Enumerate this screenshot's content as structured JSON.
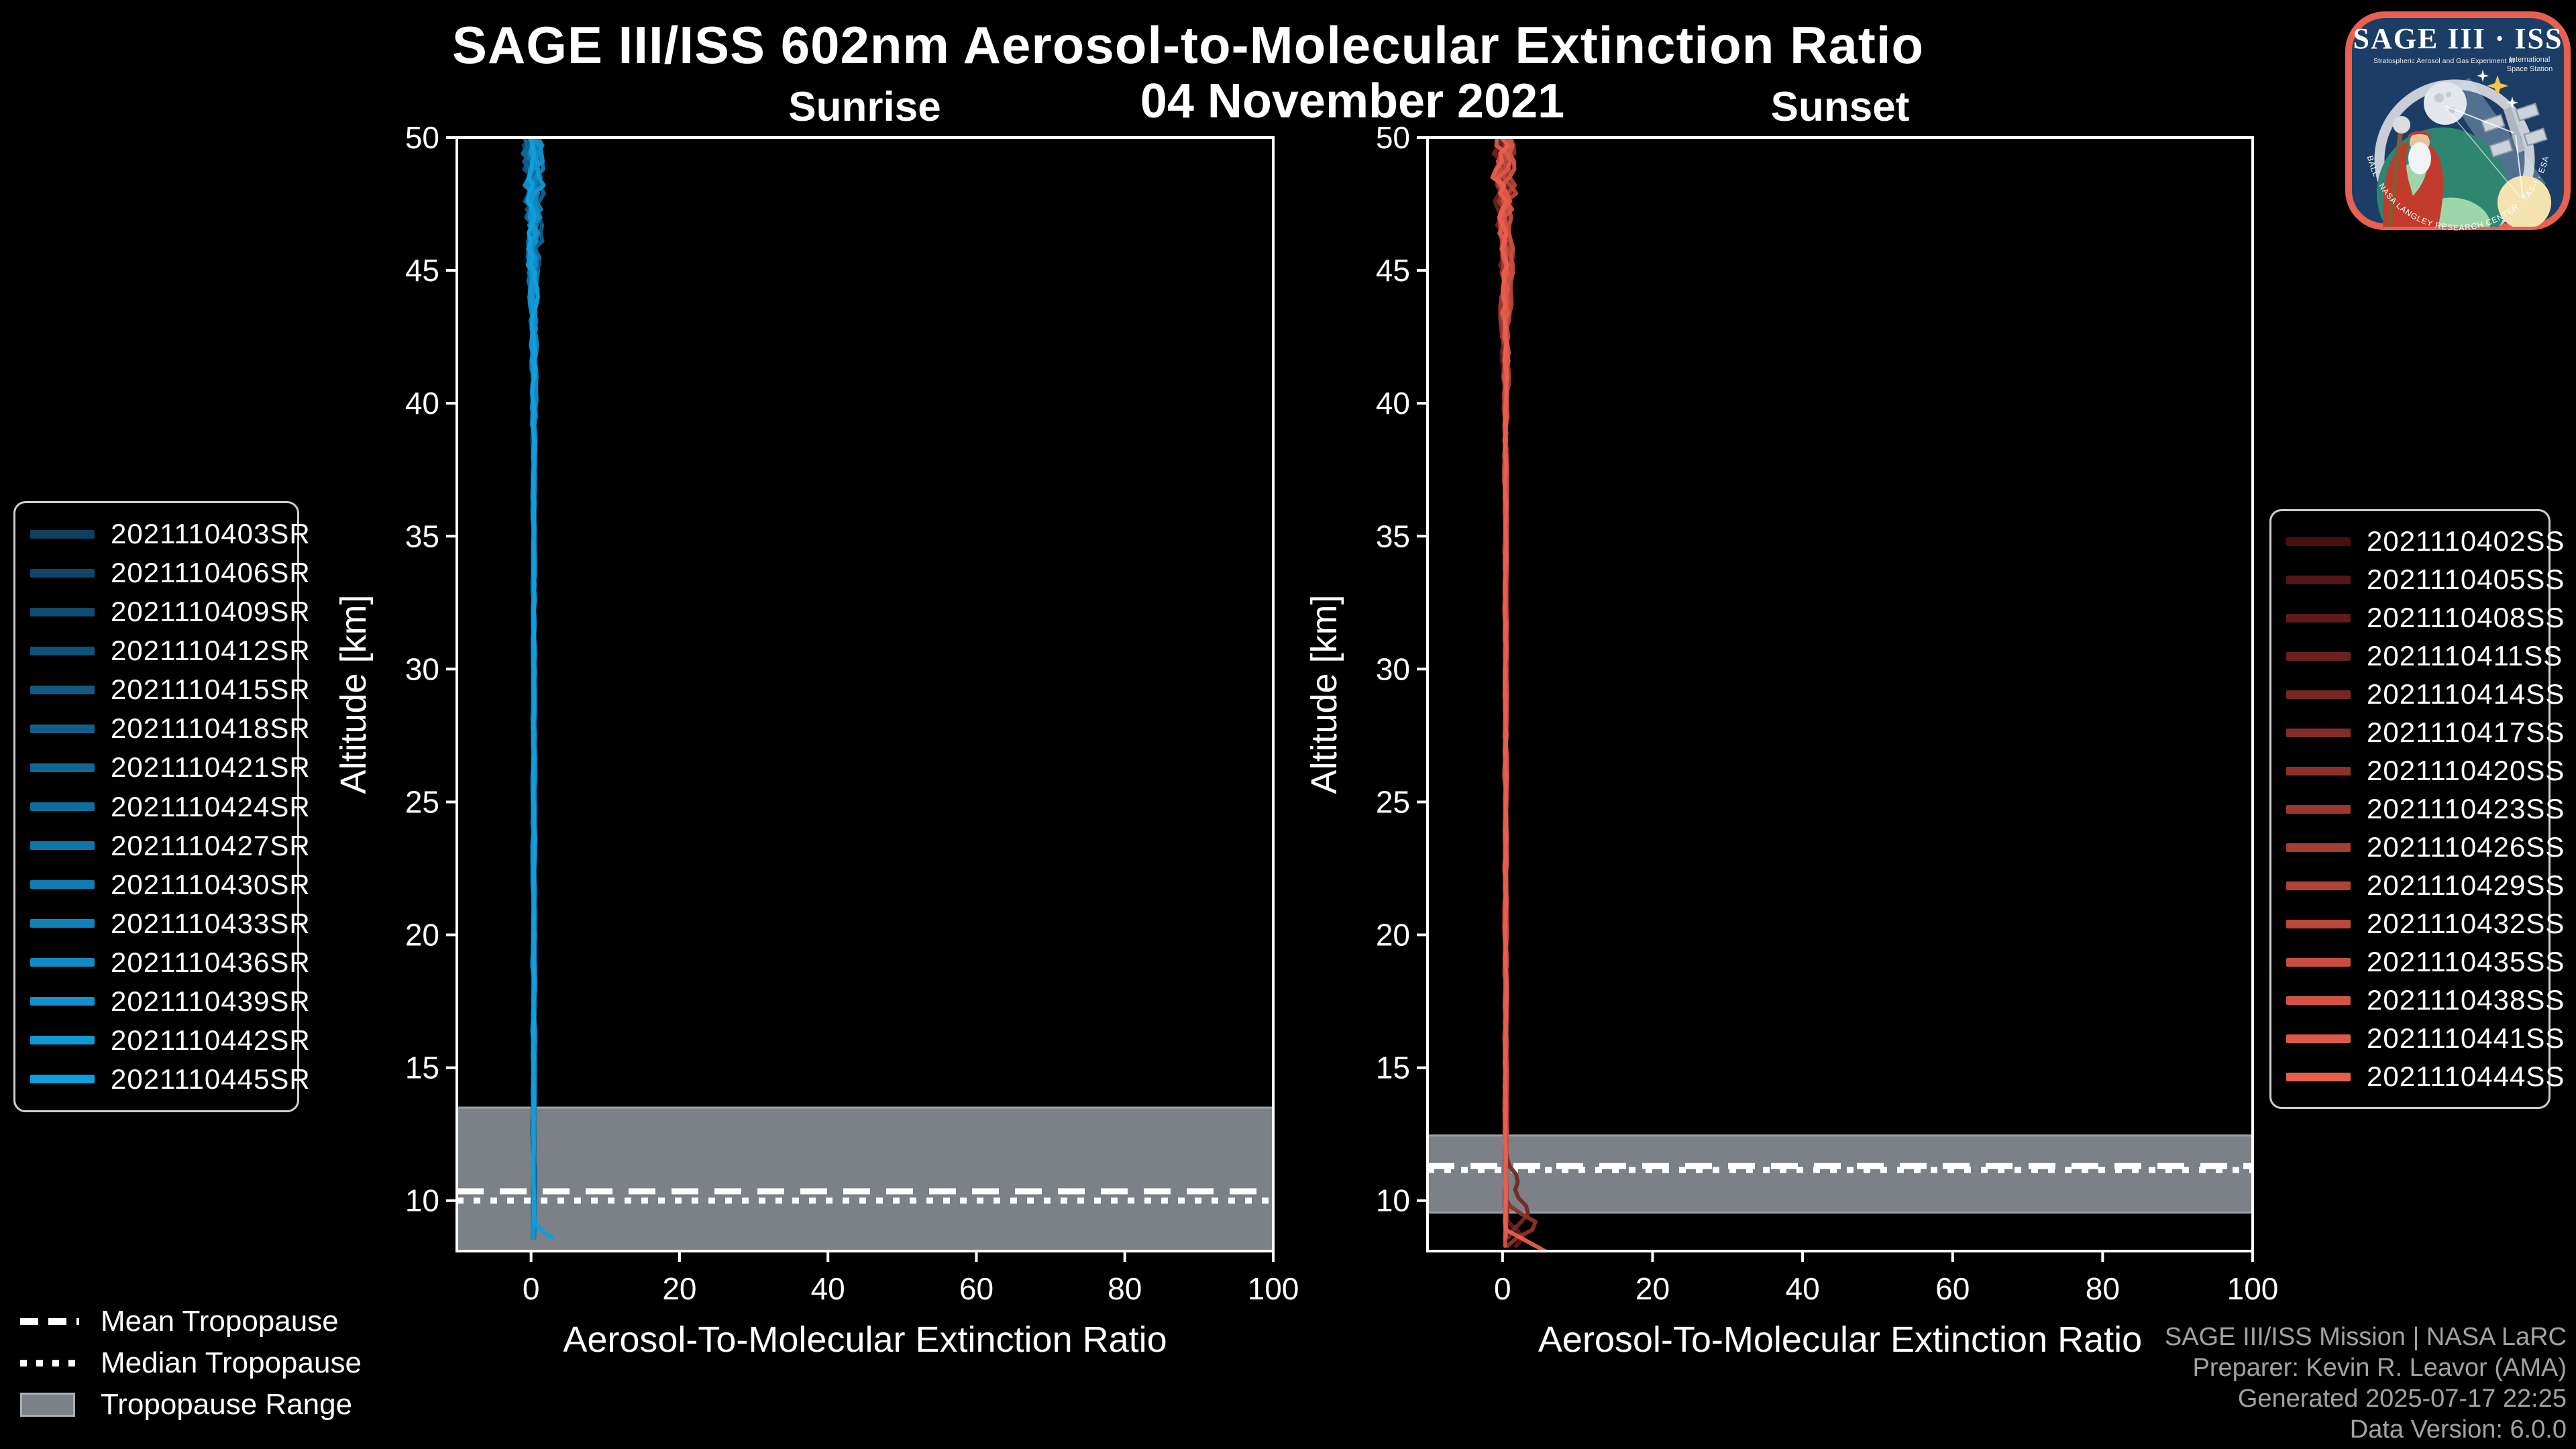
{
  "header": {
    "title": "SAGE III/ISS 602nm Aerosol-to-Molecular Extinction Ratio",
    "subtitle": "04 November 2021",
    "left_panel_title": "Sunrise",
    "right_panel_title": "Sunset"
  },
  "tropopause_legend": {
    "mean": "Mean Tropopause",
    "median": "Median Tropopause",
    "range": "Tropopause Range"
  },
  "footer": {
    "lines": [
      "SAGE III/ISS Mission | NASA LaRC",
      "Preparer: Kevin R. Leavor (AMA)",
      "Generated 2025-07-17 22:25",
      "Data Version: 6.0.0"
    ]
  },
  "logo": {
    "title": "SAGE III · ISS",
    "subtitle_left": "Stratospheric Aerosol and Gas Experiment III",
    "subtitle_right_line1": "International",
    "subtitle_right_line2": "Space Station",
    "border_text": "BALL · NASA LANGLEY RESEARCH CENTER · TAS-I · ESA",
    "border_color": "#e8604f",
    "background_color": "#1c3e66"
  },
  "colors": {
    "background": "#000000",
    "axis": "#ffffff",
    "tropopause_band": "#7b8187",
    "tropopause_band_edge": "#9aa0a6",
    "tropopause_lines": "#ffffff",
    "legend_border": "#cfcfcf",
    "footer_text": "#a2a2a2"
  },
  "chart_data": [
    {
      "type": "line",
      "panel_title": "Sunrise",
      "xlabel": "Aerosol-To-Molecular Extinction Ratio",
      "ylabel": "Altitude [km]",
      "xlim": [
        -10,
        100
      ],
      "ylim": [
        8.1,
        50
      ],
      "xticks": [
        0,
        20,
        40,
        60,
        80,
        100
      ],
      "yticks": [
        10,
        15,
        20,
        25,
        30,
        35,
        40,
        45,
        50
      ],
      "grid": false,
      "legend_position": "outside-left",
      "series": [
        {
          "name": "2021110403SR",
          "color": "#0f3e5e"
        },
        {
          "name": "2021110406SR",
          "color": "#0f4567"
        },
        {
          "name": "2021110409SR",
          "color": "#0f4c70"
        },
        {
          "name": "2021110412SR",
          "color": "#105379"
        },
        {
          "name": "2021110415SR",
          "color": "#105982"
        },
        {
          "name": "2021110418SR",
          "color": "#10608b"
        },
        {
          "name": "2021110421SR",
          "color": "#106794"
        },
        {
          "name": "2021110424SR",
          "color": "#106e9e"
        },
        {
          "name": "2021110427SR",
          "color": "#1075a7"
        },
        {
          "name": "2021110430SR",
          "color": "#107cb0"
        },
        {
          "name": "2021110433SR",
          "color": "#1182b9"
        },
        {
          "name": "2021110436SR",
          "color": "#1189c2"
        },
        {
          "name": "2021110439SR",
          "color": "#1190cb"
        },
        {
          "name": "2021110442SR",
          "color": "#1197d4"
        },
        {
          "name": "2021110445SR",
          "color": "#119edd"
        }
      ],
      "mean_profile": {
        "altitude_km": [
          8.5,
          10,
          15,
          20,
          25,
          30,
          35,
          40,
          45,
          50
        ],
        "ratio": [
          0.6,
          0.45,
          0.4,
          0.4,
          0.4,
          0.45,
          0.5,
          0.5,
          0.55,
          0.6
        ]
      },
      "profile_notes": {
        "typical_ratio": 0.5,
        "noise_half_width_above_42km": 1.5,
        "min_altitude_km": 8.3,
        "max_altitude_km": 50,
        "boundary_feature": "one bright profile bends right to ratio ~4 near 8.4 km"
      },
      "tropopause": {
        "mean_km": 10.35,
        "median_km": 10.0,
        "range_km": [
          8.1,
          13.5
        ]
      }
    },
    {
      "type": "line",
      "panel_title": "Sunset",
      "xlabel": "Aerosol-To-Molecular Extinction Ratio",
      "ylabel": "Altitude [km]",
      "xlim": [
        -10,
        100
      ],
      "ylim": [
        8.1,
        50
      ],
      "xticks": [
        0,
        20,
        40,
        60,
        80,
        100
      ],
      "yticks": [
        10,
        15,
        20,
        25,
        30,
        35,
        40,
        45,
        50
      ],
      "grid": false,
      "legend_position": "outside-right",
      "series": [
        {
          "name": "2021110402SS",
          "color": "#481010"
        },
        {
          "name": "2021110405SS",
          "color": "#541614"
        },
        {
          "name": "2021110408SS",
          "color": "#5f1b19"
        },
        {
          "name": "2021110411SS",
          "color": "#6b211d"
        },
        {
          "name": "2021110414SS",
          "color": "#762721"
        },
        {
          "name": "2021110417SS",
          "color": "#822c26"
        },
        {
          "name": "2021110420SS",
          "color": "#8d322a"
        },
        {
          "name": "2021110423SS",
          "color": "#99382f"
        },
        {
          "name": "2021110426SS",
          "color": "#a43d33"
        },
        {
          "name": "2021110429SS",
          "color": "#b04337"
        },
        {
          "name": "2021110432SS",
          "color": "#bb483c"
        },
        {
          "name": "2021110435SS",
          "color": "#c74e40"
        },
        {
          "name": "2021110438SS",
          "color": "#d25444"
        },
        {
          "name": "2021110441SS",
          "color": "#de5949"
        },
        {
          "name": "2021110444SS",
          "color": "#e95f4d"
        }
      ],
      "mean_profile": {
        "altitude_km": [
          8,
          10,
          15,
          20,
          25,
          30,
          35,
          40,
          45,
          50
        ],
        "ratio": [
          0.6,
          0.5,
          0.45,
          0.45,
          0.45,
          0.5,
          0.5,
          0.55,
          0.6,
          0.6
        ]
      },
      "profile_notes": {
        "typical_ratio": 0.5,
        "noise_half_width_above_42km": 1.5,
        "min_altitude_km": 7.9,
        "max_altitude_km": 50,
        "boundary_feature": "dark profiles spike right to ratio 2.5-5 between 8.5 and 10.5 km; brightest profile runs diagonally to ratio ~7 at the 8.1 km bottom edge"
      },
      "tropopause": {
        "mean_km": 11.3,
        "median_km": 11.15,
        "range_km": [
          9.55,
          12.45
        ]
      }
    }
  ]
}
